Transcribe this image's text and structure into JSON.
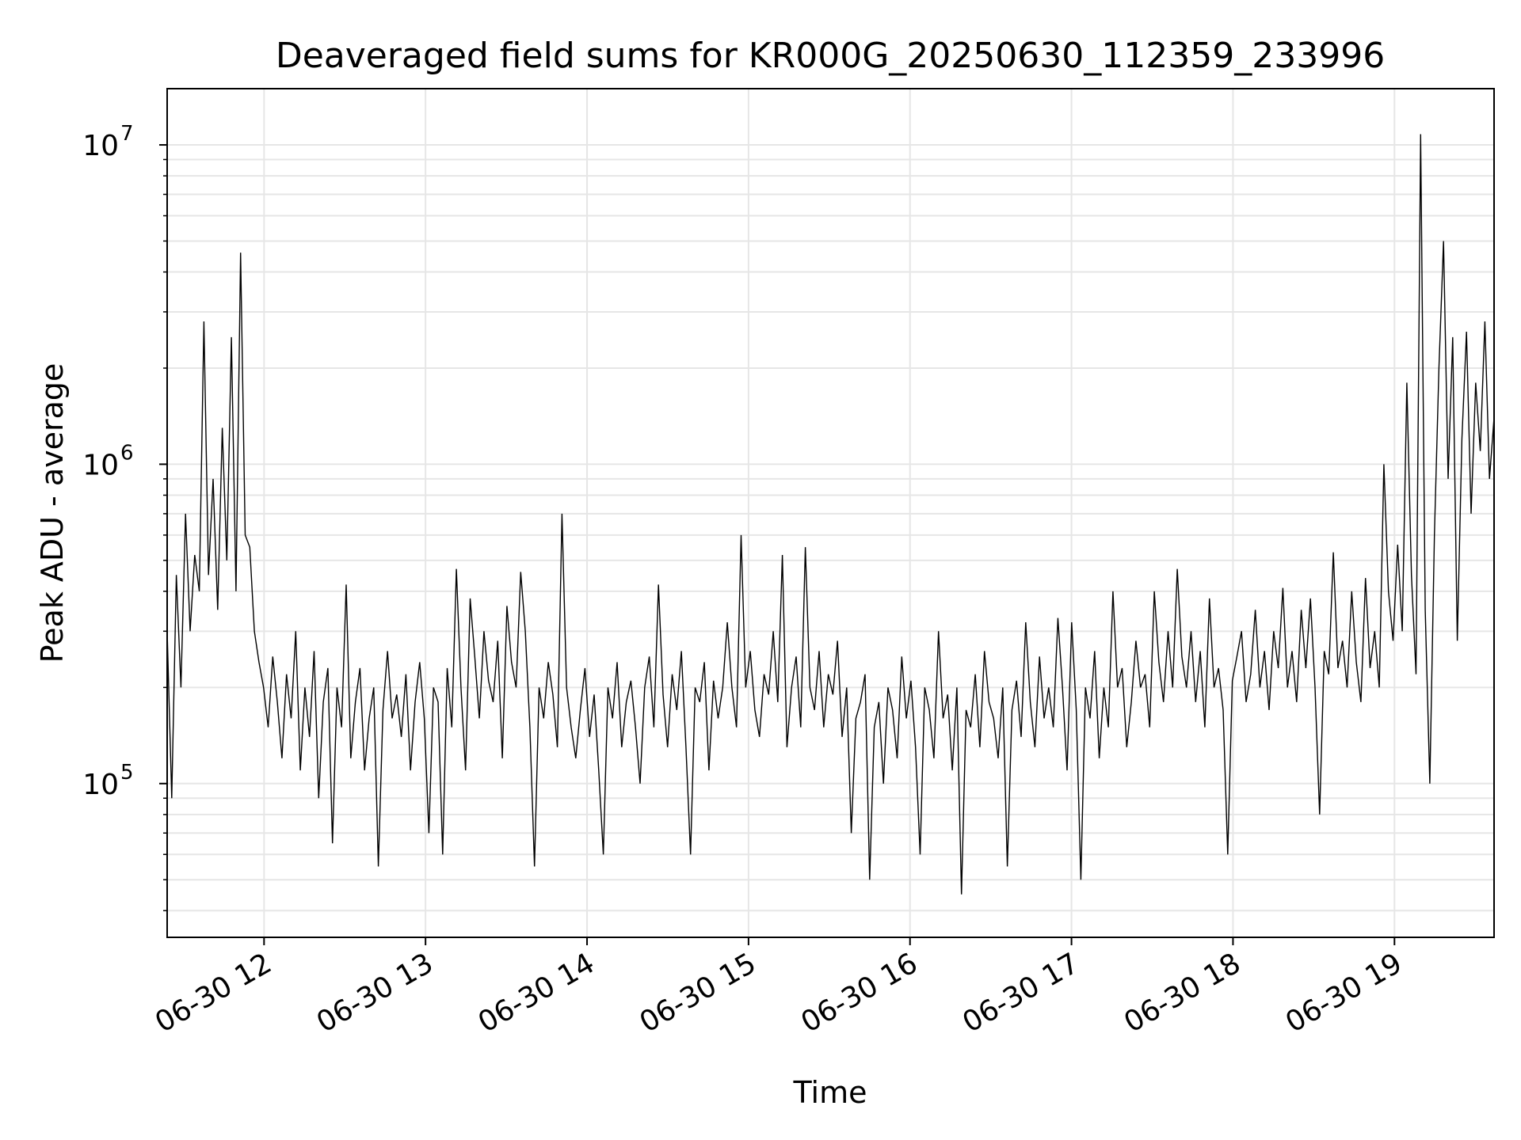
{
  "chart_data": {
    "type": "line",
    "title": "Deaveraged field sums for KR000G_20250630_112359_233996",
    "xlabel": "Time",
    "ylabel": "Peak ADU - average",
    "yscale": "log",
    "grid": true,
    "x_ticks": [
      "06-30 12",
      "06-30 13",
      "06-30 14",
      "06-30 15",
      "06-30 16",
      "06-30 17",
      "06-30 18",
      "06-30 19"
    ],
    "y_ticks": [
      {
        "base": "10",
        "exp": "5",
        "value": 100000
      },
      {
        "base": "10",
        "exp": "6",
        "value": 1000000
      },
      {
        "base": "10",
        "exp": "7",
        "value": 10000000
      }
    ],
    "xlim": [
      "2025-06-30 11:24",
      "2025-06-30 19:37"
    ],
    "ylim": [
      33000,
      15000000
    ],
    "line_color": "#000000",
    "series": [
      {
        "x_start": "2025-06-30 11:24",
        "x_end": "2025-06-30 19:37",
        "values": [
          300000,
          90000,
          450000,
          200000,
          700000,
          300000,
          520000,
          400000,
          2800000,
          450000,
          900000,
          350000,
          1300000,
          500000,
          2500000,
          400000,
          4600000,
          600000,
          550000,
          300000,
          240000,
          200000,
          150000,
          250000,
          180000,
          120000,
          220000,
          160000,
          300000,
          110000,
          200000,
          140000,
          260000,
          90000,
          180000,
          230000,
          65000,
          200000,
          150000,
          420000,
          120000,
          180000,
          230000,
          110000,
          160000,
          200000,
          55000,
          170000,
          260000,
          160000,
          190000,
          140000,
          220000,
          110000,
          180000,
          240000,
          160000,
          70000,
          200000,
          180000,
          60000,
          230000,
          150000,
          470000,
          200000,
          110000,
          380000,
          250000,
          160000,
          300000,
          210000,
          180000,
          280000,
          120000,
          360000,
          240000,
          200000,
          460000,
          300000,
          150000,
          55000,
          200000,
          160000,
          240000,
          190000,
          130000,
          700000,
          200000,
          150000,
          120000,
          170000,
          230000,
          140000,
          190000,
          110000,
          60000,
          200000,
          160000,
          240000,
          130000,
          180000,
          210000,
          150000,
          100000,
          200000,
          250000,
          150000,
          420000,
          190000,
          130000,
          220000,
          170000,
          260000,
          130000,
          60000,
          200000,
          180000,
          240000,
          110000,
          210000,
          160000,
          200000,
          320000,
          200000,
          150000,
          600000,
          200000,
          260000,
          170000,
          140000,
          220000,
          190000,
          300000,
          180000,
          520000,
          130000,
          200000,
          250000,
          150000,
          550000,
          200000,
          170000,
          260000,
          150000,
          220000,
          190000,
          280000,
          140000,
          200000,
          70000,
          160000,
          180000,
          220000,
          50000,
          150000,
          180000,
          100000,
          200000,
          170000,
          120000,
          250000,
          160000,
          210000,
          130000,
          60000,
          200000,
          170000,
          120000,
          300000,
          160000,
          190000,
          110000,
          200000,
          45000,
          170000,
          150000,
          220000,
          130000,
          260000,
          180000,
          160000,
          120000,
          200000,
          55000,
          170000,
          210000,
          140000,
          320000,
          180000,
          130000,
          250000,
          160000,
          200000,
          150000,
          330000,
          200000,
          110000,
          320000,
          170000,
          50000,
          200000,
          160000,
          260000,
          120000,
          200000,
          150000,
          400000,
          200000,
          230000,
          130000,
          180000,
          280000,
          200000,
          220000,
          150000,
          400000,
          240000,
          180000,
          300000,
          200000,
          470000,
          250000,
          200000,
          300000,
          180000,
          260000,
          150000,
          380000,
          200000,
          230000,
          170000,
          60000,
          210000,
          250000,
          300000,
          180000,
          220000,
          350000,
          200000,
          260000,
          170000,
          300000,
          230000,
          410000,
          200000,
          260000,
          180000,
          350000,
          230000,
          380000,
          200000,
          80000,
          260000,
          220000,
          530000,
          230000,
          280000,
          200000,
          400000,
          240000,
          180000,
          440000,
          230000,
          300000,
          200000,
          1000000,
          400000,
          280000,
          560000,
          300000,
          1800000,
          450000,
          220000,
          10800000,
          350000,
          100000,
          600000,
          2000000,
          5000000,
          900000,
          2500000,
          280000,
          1200000,
          2600000,
          700000,
          1800000,
          1100000,
          2800000,
          900000,
          1400000
        ]
      }
    ]
  }
}
